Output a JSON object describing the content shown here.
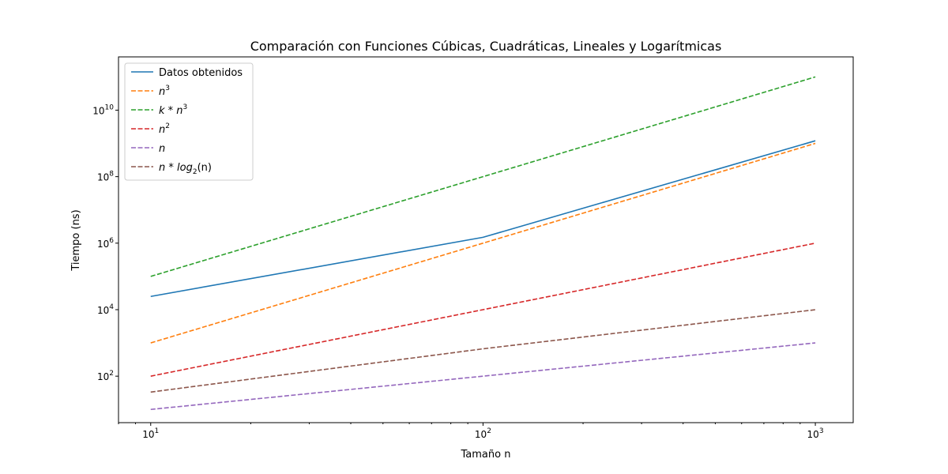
{
  "chart_data": {
    "type": "line",
    "title": "Comparación con Funciones Cúbicas, Cuadráticas, Lineales y Logarítmicas",
    "xlabel": "Tamaño n",
    "ylabel": "Tiempo (ns)",
    "xscale": "log",
    "yscale": "log",
    "xlim": [
      8,
      1300
    ],
    "ylim": [
      4,
      400000000000
    ],
    "x": [
      10,
      100,
      1000
    ],
    "x_tick_labels": [
      {
        "base": "10",
        "exp": "1",
        "value": 10
      },
      {
        "base": "10",
        "exp": "2",
        "value": 100
      },
      {
        "base": "10",
        "exp": "3",
        "value": 1000
      }
    ],
    "y_tick_labels": [
      {
        "base": "10",
        "exp": "2",
        "value": 100
      },
      {
        "base": "10",
        "exp": "4",
        "value": 10000
      },
      {
        "base": "10",
        "exp": "6",
        "value": 1000000
      },
      {
        "base": "10",
        "exp": "8",
        "value": 100000000
      },
      {
        "base": "10",
        "exp": "10",
        "value": 10000000000
      }
    ],
    "legend_position": "top-left",
    "grid": false,
    "series": [
      {
        "name": "Datos obtenidos",
        "label_main": "Datos obtenidos",
        "color": "#1f77b4",
        "dash": "solid",
        "values": [
          25000,
          1500000,
          1200000000
        ]
      },
      {
        "name": "n^3",
        "label_main": "n",
        "label_sup": "3",
        "color": "#ff7f0e",
        "dash": "dashed",
        "values": [
          1000,
          1000000,
          1000000000
        ]
      },
      {
        "name": "k*n^3",
        "label_main": "k * n",
        "label_sup": "3",
        "color": "#2ca02c",
        "dash": "dashed",
        "values": [
          100000,
          100000000,
          100000000000
        ]
      },
      {
        "name": "n^2",
        "label_main": "n",
        "label_sup": "2",
        "color": "#d62728",
        "dash": "dashed",
        "values": [
          100,
          10000,
          1000000
        ]
      },
      {
        "name": "n",
        "label_main": "n",
        "color": "#9467bd",
        "dash": "dashed",
        "values": [
          10,
          100,
          1000
        ]
      },
      {
        "name": "n*log2(n)",
        "label_main": "n * log",
        "label_sub": "2",
        "label_tail": "(n)",
        "color": "#8c564b",
        "dash": "dashed",
        "values": [
          33.22,
          664.39,
          9965.78
        ]
      }
    ]
  }
}
